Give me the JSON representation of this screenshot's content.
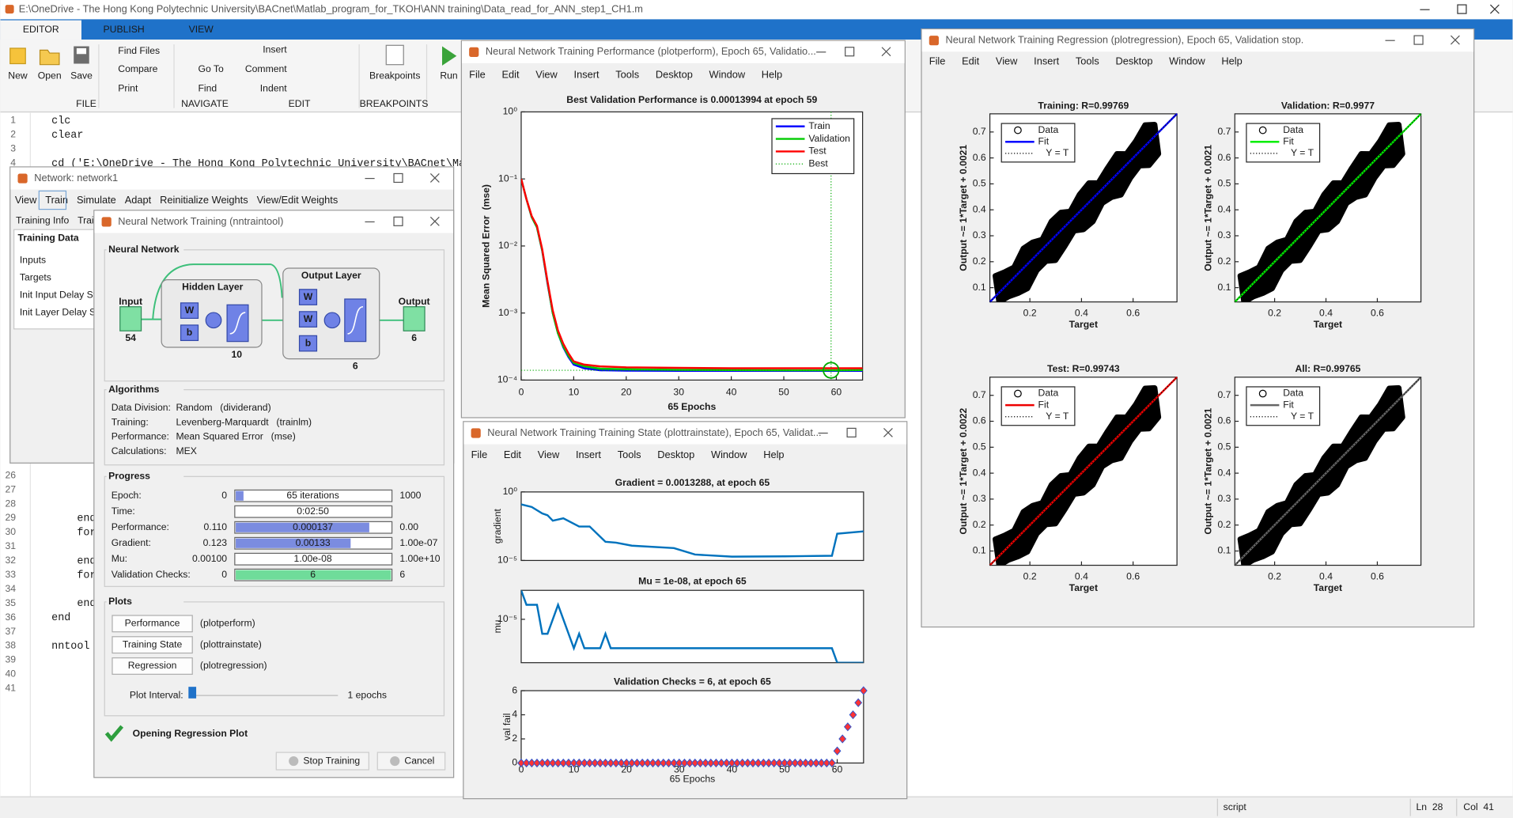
{
  "app": {
    "title": "E:\\OneDrive - The Hong Kong Polytechnic University\\BACnet\\Matlab_program_for_TKOH\\ANN training\\Data_read_for_ANN_step1_CH1.m",
    "tabs": [
      "EDITOR",
      "PUBLISH",
      "VIEW"
    ],
    "ribbon": {
      "new": "New",
      "open": "Open",
      "save": "Save",
      "find_files": "Find Files",
      "compare": "Compare",
      "print": "Print",
      "go_to": "Go To",
      "find": "Find",
      "insert": "Insert",
      "comment": "Comment",
      "indent": "Indent",
      "breakpoints": "Breakpoints",
      "run": "Run"
    },
    "groups": {
      "file": "FILE",
      "navigate": "NAVIGATE",
      "edit": "EDIT",
      "breakpoints": "BREAKPOINTS"
    },
    "editor_lines": [
      {
        "n": 1,
        "code": "clc"
      },
      {
        "n": 2,
        "code": "clear"
      },
      {
        "n": 3
      },
      {
        "n": 4,
        "code": "cd ('E:\\OneDrive - The Hong Kong Polytechnic University\\BACnet\\Ma"
      },
      {
        "n": 26
      },
      {
        "n": 27
      },
      {
        "n": 28
      },
      {
        "n": 29,
        "code": "    end",
        "color": "#0000ff"
      },
      {
        "n": 30,
        "code": "    for",
        "color": "#0000ff"
      },
      {
        "n": 31
      },
      {
        "n": 32,
        "code": "    end",
        "color": "#0000ff"
      },
      {
        "n": 33,
        "code": "    for",
        "color": "#0000ff"
      },
      {
        "n": 34
      },
      {
        "n": 35,
        "code": "    end",
        "color": "#0000ff"
      },
      {
        "n": 36,
        "code": "end",
        "color": "#0000ff"
      },
      {
        "n": 37
      },
      {
        "n": 38,
        "code": "nntool"
      },
      {
        "n": 39
      },
      {
        "n": 40
      },
      {
        "n": 41
      }
    ],
    "status": {
      "mode": "script",
      "line": "Ln  28",
      "col": "Col  41"
    }
  },
  "network_window": {
    "title": "Network: network1",
    "menu": [
      "View",
      "Train",
      "Simulate",
      "Adapt",
      "Reinitialize Weights",
      "View/Edit Weights"
    ],
    "tabs": [
      "Training Info",
      "Trai"
    ],
    "section": "Training Data",
    "items": [
      "Inputs",
      "Targets",
      "Init Input Delay St",
      "Init Layer Delay St"
    ]
  },
  "nntraintool": {
    "title": "Neural Network Training (nntraintool)",
    "network": {
      "heading": "Neural Network",
      "input": "Input",
      "input_size": "54",
      "hidden": "Hidden Layer",
      "hidden_size": "10",
      "output_layer": "Output Layer",
      "output_layer_size": "6",
      "output": "Output",
      "output_size": "6",
      "w": "W",
      "b": "b"
    },
    "algorithms": {
      "heading": "Algorithms",
      "rows": [
        [
          "Data Division:",
          "Random",
          "(dividerand)"
        ],
        [
          "Training:",
          "Levenberg-Marquardt",
          "(trainlm)"
        ],
        [
          "Performance:",
          "Mean Squared Error",
          "(mse)"
        ],
        [
          "Calculations:",
          "MEX"
        ]
      ]
    },
    "progress": {
      "heading": "Progress",
      "rows": [
        {
          "label": "Epoch:",
          "start": "0",
          "current": "65 iterations",
          "end": "1000"
        },
        {
          "label": "Time:",
          "current": "0:02:50"
        },
        {
          "label": "Performance:",
          "start": "0.110",
          "current": "0.000137",
          "end": "0.00"
        },
        {
          "label": "Gradient:",
          "start": "0.123",
          "current": "0.00133",
          "end": "1.00e-07"
        },
        {
          "label": "Mu:",
          "start": "0.00100",
          "current": "1.00e-08",
          "end": "1.00e+10"
        },
        {
          "label": "Validation Checks:",
          "start": "0",
          "current": "6",
          "end": "6"
        }
      ]
    },
    "plots": {
      "heading": "Plots",
      "buttons": [
        [
          "Performance",
          "(plotperform)"
        ],
        [
          "Training State",
          "(plottrainstate)"
        ],
        [
          "Regression",
          "(plotregression)"
        ]
      ],
      "interval_label": "Plot Interval:",
      "interval_value": "1 epochs"
    },
    "status": "Opening Regression Plot",
    "buttons": [
      "Stop Training",
      "Cancel"
    ]
  },
  "perform_window": {
    "title": "Neural Network Training Performance (plotperform), Epoch 65, Validatio...",
    "menu": [
      "File",
      "Edit",
      "View",
      "Insert",
      "Tools",
      "Desktop",
      "Window",
      "Help"
    ],
    "chart_data": {
      "type": "line",
      "title": "Best Validation Performance is 0.00013994 at epoch 59",
      "xlabel": "65 Epochs",
      "ylabel": "Mean Squared Error  (mse)",
      "log_y": true,
      "xlim": [
        0,
        65
      ],
      "ylim": [
        0.0001,
        1
      ],
      "xticks": [
        0,
        10,
        20,
        30,
        40,
        50,
        60
      ],
      "yticks": [
        {
          "value": 0.0001,
          "label": "10⁻⁴"
        },
        {
          "value": 0.001,
          "label": "10⁻³"
        },
        {
          "value": 0.01,
          "label": "10⁻²"
        },
        {
          "value": 0.1,
          "label": "10⁻¹"
        },
        {
          "value": 1,
          "label": "10⁰"
        }
      ],
      "x": [
        0,
        1,
        2,
        3,
        4,
        5,
        6,
        7,
        8,
        9,
        10,
        12,
        15,
        20,
        30,
        40,
        50,
        59,
        60,
        65
      ],
      "series": [
        {
          "name": "Train",
          "color": "#0000ff",
          "values": [
            0.1,
            0.05,
            0.027,
            0.019,
            0.0085,
            0.0028,
            0.001,
            0.0005,
            0.00031,
            0.00022,
            0.00017,
            0.00015,
            0.00014,
            0.000138,
            0.000137,
            0.000137,
            0.000137,
            0.000137,
            0.000137,
            0.000137
          ]
        },
        {
          "name": "Validation",
          "color": "#00cc00",
          "values": [
            0.1,
            0.05,
            0.027,
            0.019,
            0.0086,
            0.0029,
            0.001,
            0.0005,
            0.00032,
            0.00023,
            0.00018,
            0.00016,
            0.000148,
            0.000145,
            0.000142,
            0.000141,
            0.00014,
            0.00013994,
            0.00014,
            0.000141
          ]
        },
        {
          "name": "Test",
          "color": "#ff0000",
          "values": [
            0.1,
            0.05,
            0.028,
            0.02,
            0.009,
            0.003,
            0.0011,
            0.00055,
            0.00035,
            0.00025,
            0.00019,
            0.00017,
            0.00016,
            0.000155,
            0.000152,
            0.00015,
            0.00015,
            0.00015,
            0.00015,
            0.00015
          ]
        }
      ],
      "best": {
        "name": "Best",
        "epoch": 59,
        "value": 0.00013994,
        "color": "#00aa00"
      },
      "legend": "upper right"
    }
  },
  "trainstate_window": {
    "title": "Neural Network Training Training State (plottrainstate), Epoch 65, Validat...",
    "menu": [
      "File",
      "Edit",
      "View",
      "Insert",
      "Tools",
      "Desktop",
      "Window",
      "Help"
    ],
    "chart_data": [
      {
        "type": "line",
        "title": "Gradient = 0.0013288, at epoch 65",
        "ylabel": "gradient",
        "log_y": true,
        "color": "#0072bd",
        "xlim": [
          0,
          65
        ],
        "ylim": [
          1e-05,
          1
        ],
        "yticks": [
          {
            "value": 1,
            "label": "10⁰"
          },
          {
            "value": 1e-05,
            "label": "10⁻⁵"
          }
        ],
        "x": [
          0,
          2,
          4,
          5,
          6,
          8,
          11,
          13,
          16,
          18,
          21,
          29,
          33,
          40,
          50,
          59,
          60,
          65
        ],
        "values": [
          0.123,
          0.08,
          0.027,
          0.02,
          0.008,
          0.012,
          0.003,
          0.003,
          0.00023,
          0.0002,
          0.00012,
          8e-05,
          2.7e-05,
          1.9e-05,
          2e-05,
          2.2e-05,
          0.0009,
          0.0013288
        ]
      },
      {
        "type": "line",
        "title": "Mu = 1e-08, at epoch 65",
        "ylabel": "mu",
        "log_y": true,
        "color": "#0072bd",
        "xlim": [
          0,
          65
        ],
        "ylim": [
          1e-08,
          0.001
        ],
        "yticks": [
          {
            "value": 1e-05,
            "label": "10⁻⁵"
          }
        ],
        "x": [
          0,
          1,
          3,
          4,
          5,
          7,
          8,
          9,
          10,
          11,
          12,
          15,
          16,
          17,
          59,
          60,
          65
        ],
        "values": [
          0.001,
          0.0001,
          0.0001,
          1e-06,
          1e-06,
          0.0001,
          1e-05,
          1e-06,
          1e-07,
          1e-06,
          1e-07,
          1e-07,
          1e-06,
          1e-07,
          1e-07,
          1e-08,
          1e-08
        ]
      },
      {
        "type": "scatter",
        "title": "Validation Checks = 6, at epoch 65",
        "ylabel": "val fail",
        "xlabel": "65 Epochs",
        "color": "#ff3333",
        "edge_color": "#3355cc",
        "xlim": [
          0,
          65
        ],
        "ylim": [
          0,
          6
        ],
        "xticks": [
          0,
          10,
          20,
          30,
          40,
          50,
          60
        ],
        "yticks": [
          0,
          2,
          4,
          6
        ],
        "x": [
          0,
          1,
          2,
          3,
          4,
          5,
          6,
          7,
          8,
          9,
          10,
          11,
          12,
          13,
          14,
          15,
          16,
          17,
          18,
          19,
          20,
          21,
          22,
          23,
          24,
          25,
          26,
          27,
          28,
          29,
          30,
          31,
          32,
          33,
          34,
          35,
          36,
          37,
          38,
          39,
          40,
          41,
          42,
          43,
          44,
          45,
          46,
          47,
          48,
          49,
          50,
          51,
          52,
          53,
          54,
          55,
          56,
          57,
          58,
          59,
          60,
          61,
          62,
          63,
          64,
          65
        ],
        "values": [
          0,
          0,
          0,
          0,
          0,
          0,
          0,
          0,
          0,
          0,
          0,
          0,
          0,
          0,
          0,
          0,
          0,
          0,
          0,
          0,
          0,
          0,
          0,
          0,
          0,
          0,
          0,
          0,
          0,
          0,
          0,
          0,
          0,
          0,
          0,
          0,
          0,
          0,
          0,
          0,
          0,
          0,
          0,
          0,
          0,
          0,
          0,
          0,
          0,
          0,
          0,
          0,
          0,
          0,
          0,
          0,
          0,
          0,
          0,
          0,
          1,
          2,
          3,
          4,
          5,
          6
        ]
      }
    ]
  },
  "regression_window": {
    "title": "Neural Network Training Regression (plotregression), Epoch 65, Validation stop.",
    "menu": [
      "File",
      "Edit",
      "View",
      "Insert",
      "Tools",
      "Desktop",
      "Window",
      "Help"
    ],
    "chart_data": [
      {
        "type": "regression",
        "title": "Training: R=0.99769",
        "xlabel": "Target",
        "ylabel": "Output ~= 1*Target + 0.0021",
        "xlim": [
          0.045,
          0.77
        ],
        "ylim": [
          0.045,
          0.77
        ],
        "xticks": [
          0.2,
          0.4,
          0.6
        ],
        "yticks": [
          0.1,
          0.2,
          0.3,
          0.4,
          0.5,
          0.6,
          0.7
        ],
        "legend_entries": [
          {
            "name": "Data",
            "color": "#000000"
          },
          {
            "name": "Fit",
            "color": "#0000ff"
          },
          {
            "name": "Y = T",
            "color": "#000000"
          }
        ]
      },
      {
        "type": "regression",
        "title": "Validation: R=0.9977",
        "xlabel": "Target",
        "ylabel": "Output ~= 1*Target + 0.0021",
        "xlim": [
          0.045,
          0.77
        ],
        "ylim": [
          0.045,
          0.77
        ],
        "xticks": [
          0.2,
          0.4,
          0.6
        ],
        "yticks": [
          0.1,
          0.2,
          0.3,
          0.4,
          0.5,
          0.6,
          0.7
        ],
        "legend_entries": [
          {
            "name": "Data",
            "color": "#000000"
          },
          {
            "name": "Fit",
            "color": "#00ee00"
          },
          {
            "name": "Y = T",
            "color": "#000000"
          }
        ]
      },
      {
        "type": "regression",
        "title": "Test: R=0.99743",
        "xlabel": "Target",
        "ylabel": "Output ~= 1*Target + 0.0022",
        "xlim": [
          0.045,
          0.77
        ],
        "ylim": [
          0.045,
          0.77
        ],
        "xticks": [
          0.2,
          0.4,
          0.6
        ],
        "yticks": [
          0.1,
          0.2,
          0.3,
          0.4,
          0.5,
          0.6,
          0.7
        ],
        "legend_entries": [
          {
            "name": "Data",
            "color": "#000000"
          },
          {
            "name": "Fit",
            "color": "#ee0000"
          },
          {
            "name": "Y = T",
            "color": "#000000"
          }
        ]
      },
      {
        "type": "regression",
        "title": "All: R=0.99765",
        "xlabel": "Target",
        "ylabel": "Output ~= 1*Target + 0.0021",
        "xlim": [
          0.045,
          0.77
        ],
        "ylim": [
          0.045,
          0.77
        ],
        "xticks": [
          0.2,
          0.4,
          0.6
        ],
        "yticks": [
          0.1,
          0.2,
          0.3,
          0.4,
          0.5,
          0.6,
          0.7
        ],
        "legend_entries": [
          {
            "name": "Data",
            "color": "#000000"
          },
          {
            "name": "Fit",
            "color": "#666666"
          },
          {
            "name": "Y = T",
            "color": "#000000"
          }
        ]
      }
    ]
  }
}
